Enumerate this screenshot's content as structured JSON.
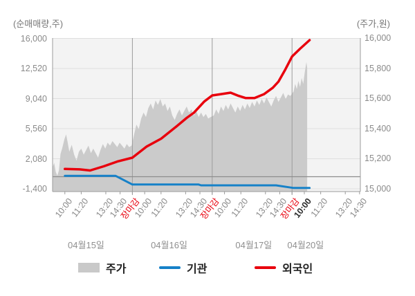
{
  "colors": {
    "plot_bg": "#f3f3f3",
    "grid": "#dfdfdf",
    "day_line": "#9b9b9b",
    "zero_line": "#8c8c8c",
    "area": "#cbcbcb",
    "institution_blue": "#1681c8",
    "foreigner_red": "#e8000d"
  },
  "legend": {
    "items": [
      {
        "label": "주가",
        "swatch": "area",
        "color": "#c9c9c9"
      },
      {
        "label": "기관",
        "swatch": "line",
        "color": "#1681c8"
      },
      {
        "label": "외국인",
        "swatch": "line",
        "color": "#e8000d"
      }
    ]
  },
  "chart_data": {
    "type": "area",
    "title": "",
    "left_axis": {
      "label": "(순매매량,주)",
      "ticks": [
        16000,
        12520,
        9040,
        5560,
        2080,
        -1400
      ],
      "range": [
        -1720,
        16000
      ]
    },
    "right_axis": {
      "label": "(주가,원)",
      "ticks": [
        16000,
        15800,
        15600,
        15400,
        15200,
        15000
      ],
      "range": [
        14980,
        16020
      ]
    },
    "x_axis": {
      "tick_fractions": {
        "10:00": 0.154,
        "11:20": 0.359,
        "13:20": 0.667,
        "14:30": 0.846,
        "장마감": 1.0
      },
      "days": [
        {
          "date": "04월15일",
          "ticks": [
            {
              "label": "10:00",
              "type": "time"
            },
            {
              "label": "11:20",
              "type": "time"
            },
            {
              "label": "13:20",
              "type": "time"
            },
            {
              "label": "14:30",
              "type": "time"
            },
            {
              "label": "장마감",
              "type": "close"
            }
          ]
        },
        {
          "date": "04월16일",
          "ticks": [
            {
              "label": "10:00",
              "type": "time"
            },
            {
              "label": "11:20",
              "type": "time"
            },
            {
              "label": "13:20",
              "type": "time"
            },
            {
              "label": "14:30",
              "type": "time"
            },
            {
              "label": "장마감",
              "type": "close"
            }
          ]
        },
        {
          "date": "04월17일",
          "ticks": [
            {
              "label": "10:00",
              "type": "time"
            },
            {
              "label": "11:20",
              "type": "time"
            },
            {
              "label": "13:20",
              "type": "time"
            },
            {
              "label": "14:30",
              "type": "time"
            },
            {
              "label": "장마감",
              "type": "close"
            }
          ]
        },
        {
          "date": "04월20일",
          "ticks": [
            {
              "label": "10:00",
              "type": "current"
            },
            {
              "label": "11:20",
              "type": "time"
            },
            {
              "label": "13:20",
              "type": "time"
            },
            {
              "label": "14:30",
              "type": "time"
            }
          ]
        }
      ],
      "date_center_fractions": [
        0.42,
        1.46,
        2.52,
        3.17
      ]
    },
    "series": [
      {
        "name": "주가",
        "type": "area",
        "axis": "right",
        "color": "#cbcbcb",
        "points": [
          [
            0.0,
            15140
          ],
          [
            0.02,
            15170
          ],
          [
            0.04,
            15110
          ],
          [
            0.06,
            15085
          ],
          [
            0.08,
            15120
          ],
          [
            0.1,
            15230
          ],
          [
            0.12,
            15265
          ],
          [
            0.15,
            15330
          ],
          [
            0.17,
            15360
          ],
          [
            0.19,
            15305
          ],
          [
            0.21,
            15245
          ],
          [
            0.24,
            15290
          ],
          [
            0.27,
            15225
          ],
          [
            0.3,
            15185
          ],
          [
            0.33,
            15245
          ],
          [
            0.36,
            15265
          ],
          [
            0.39,
            15225
          ],
          [
            0.42,
            15255
          ],
          [
            0.45,
            15285
          ],
          [
            0.48,
            15235
          ],
          [
            0.51,
            15265
          ],
          [
            0.54,
            15235
          ],
          [
            0.57,
            15205
          ],
          [
            0.6,
            15255
          ],
          [
            0.63,
            15295
          ],
          [
            0.66,
            15265
          ],
          [
            0.69,
            15305
          ],
          [
            0.72,
            15285
          ],
          [
            0.75,
            15315
          ],
          [
            0.78,
            15295
          ],
          [
            0.81,
            15275
          ],
          [
            0.84,
            15305
          ],
          [
            0.87,
            15285
          ],
          [
            0.9,
            15265
          ],
          [
            0.93,
            15295
          ],
          [
            0.96,
            15275
          ],
          [
            0.99,
            15285
          ],
          [
            1.02,
            15355
          ],
          [
            1.05,
            15425
          ],
          [
            1.08,
            15395
          ],
          [
            1.11,
            15465
          ],
          [
            1.14,
            15505
          ],
          [
            1.17,
            15475
          ],
          [
            1.2,
            15535
          ],
          [
            1.23,
            15565
          ],
          [
            1.26,
            15525
          ],
          [
            1.29,
            15585
          ],
          [
            1.32,
            15555
          ],
          [
            1.35,
            15595
          ],
          [
            1.38,
            15545
          ],
          [
            1.41,
            15565
          ],
          [
            1.44,
            15515
          ],
          [
            1.47,
            15545
          ],
          [
            1.5,
            15485
          ],
          [
            1.53,
            15455
          ],
          [
            1.56,
            15495
          ],
          [
            1.59,
            15525
          ],
          [
            1.62,
            15485
          ],
          [
            1.65,
            15515
          ],
          [
            1.68,
            15545
          ],
          [
            1.71,
            15505
          ],
          [
            1.74,
            15525
          ],
          [
            1.77,
            15485
          ],
          [
            1.8,
            15515
          ],
          [
            1.83,
            15475
          ],
          [
            1.86,
            15505
          ],
          [
            1.89,
            15475
          ],
          [
            1.92,
            15495
          ],
          [
            1.95,
            15465
          ],
          [
            1.98,
            15475
          ],
          [
            2.02,
            15485
          ],
          [
            2.05,
            15525
          ],
          [
            2.08,
            15495
          ],
          [
            2.11,
            15545
          ],
          [
            2.14,
            15515
          ],
          [
            2.17,
            15555
          ],
          [
            2.2,
            15525
          ],
          [
            2.23,
            15565
          ],
          [
            2.26,
            15535
          ],
          [
            2.29,
            15505
          ],
          [
            2.32,
            15545
          ],
          [
            2.35,
            15515
          ],
          [
            2.38,
            15555
          ],
          [
            2.41,
            15525
          ],
          [
            2.44,
            15565
          ],
          [
            2.47,
            15535
          ],
          [
            2.5,
            15575
          ],
          [
            2.53,
            15545
          ],
          [
            2.56,
            15585
          ],
          [
            2.59,
            15555
          ],
          [
            2.62,
            15595
          ],
          [
            2.65,
            15565
          ],
          [
            2.68,
            15605
          ],
          [
            2.71,
            15575
          ],
          [
            2.74,
            15545
          ],
          [
            2.77,
            15585
          ],
          [
            2.8,
            15615
          ],
          [
            2.83,
            15575
          ],
          [
            2.86,
            15605
          ],
          [
            2.89,
            15635
          ],
          [
            2.92,
            15595
          ],
          [
            2.95,
            15625
          ],
          [
            2.98,
            15615
          ],
          [
            3.02,
            15645
          ],
          [
            3.04,
            15695
          ],
          [
            3.06,
            15660
          ],
          [
            3.08,
            15715
          ],
          [
            3.1,
            15675
          ],
          [
            3.12,
            15735
          ],
          [
            3.14,
            15695
          ],
          [
            3.16,
            15775
          ],
          [
            3.18,
            15840
          ],
          [
            3.19,
            15800
          ]
        ]
      },
      {
        "name": "기관",
        "type": "line",
        "axis": "left",
        "color": "#1681c8",
        "width": 3,
        "points": [
          [
            0.154,
            100
          ],
          [
            0.79,
            100
          ],
          [
            1.0,
            -900
          ],
          [
            1.83,
            -900
          ],
          [
            1.86,
            -1000
          ],
          [
            2.8,
            -1000
          ],
          [
            3.02,
            -1300
          ],
          [
            3.22,
            -1300
          ]
        ]
      },
      {
        "name": "외국인",
        "type": "line",
        "axis": "left",
        "color": "#e8000d",
        "width": 3.5,
        "points": [
          [
            0.154,
            900
          ],
          [
            0.34,
            850
          ],
          [
            0.47,
            720
          ],
          [
            0.64,
            1200
          ],
          [
            0.81,
            1750
          ],
          [
            1.0,
            2200
          ],
          [
            1.18,
            3500
          ],
          [
            1.36,
            4400
          ],
          [
            1.55,
            5800
          ],
          [
            1.68,
            6800
          ],
          [
            1.77,
            7400
          ],
          [
            1.9,
            8700
          ],
          [
            2.0,
            9400
          ],
          [
            2.11,
            9550
          ],
          [
            2.23,
            9720
          ],
          [
            2.33,
            9350
          ],
          [
            2.42,
            9100
          ],
          [
            2.53,
            9100
          ],
          [
            2.65,
            9550
          ],
          [
            2.76,
            10300
          ],
          [
            2.83,
            11000
          ],
          [
            2.91,
            12300
          ],
          [
            3.0,
            13900
          ],
          [
            3.1,
            14800
          ],
          [
            3.22,
            15800
          ]
        ]
      }
    ]
  }
}
